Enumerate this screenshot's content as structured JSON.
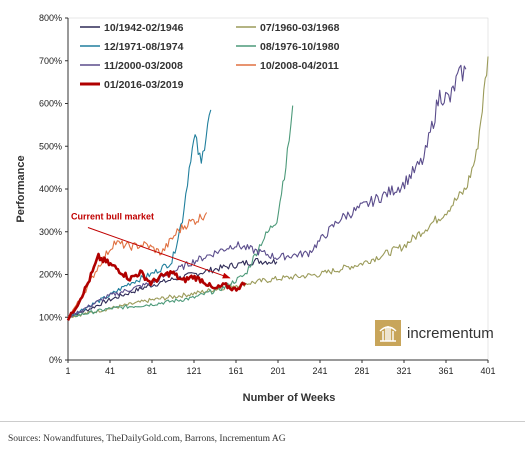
{
  "chart_data": {
    "type": "line",
    "xlabel": "Number of Weeks",
    "ylabel": "Performance",
    "xlim": [
      1,
      401
    ],
    "ylim": [
      0,
      800
    ],
    "x_ticks": [
      1,
      41,
      81,
      121,
      161,
      201,
      241,
      281,
      321,
      361,
      401
    ],
    "y_ticks": [
      0,
      100,
      200,
      300,
      400,
      500,
      600,
      700,
      800
    ],
    "x_tick_labels": [
      "1",
      "41",
      "81",
      "121",
      "161",
      "201",
      "241",
      "281",
      "321",
      "361",
      "401"
    ],
    "y_tick_labels": [
      "0%",
      "100%",
      "200%",
      "300%",
      "400%",
      "500%",
      "600%",
      "700%",
      "800%"
    ],
    "legend_placement": "top-left",
    "series": [
      {
        "name": "10/1942-02/1946",
        "color": "#2e2a56",
        "points": [
          [
            1,
            100
          ],
          [
            20,
            118
          ],
          [
            40,
            140
          ],
          [
            60,
            158
          ],
          [
            80,
            175
          ],
          [
            100,
            188
          ],
          [
            120,
            200
          ],
          [
            140,
            212
          ],
          [
            160,
            222
          ],
          [
            180,
            232
          ],
          [
            200,
            230
          ]
        ]
      },
      {
        "name": "07/1960-03/1968",
        "color": "#9b9b5a",
        "points": [
          [
            1,
            100
          ],
          [
            40,
            120
          ],
          [
            80,
            140
          ],
          [
            120,
            155
          ],
          [
            160,
            175
          ],
          [
            200,
            190
          ],
          [
            240,
            200
          ],
          [
            280,
            225
          ],
          [
            320,
            265
          ],
          [
            340,
            305
          ],
          [
            360,
            345
          ],
          [
            380,
            400
          ],
          [
            390,
            480
          ],
          [
            397,
            620
          ],
          [
            401,
            710
          ]
        ]
      },
      {
        "name": "12/1971-08/1974",
        "color": "#217f9d",
        "points": [
          [
            1,
            100
          ],
          [
            20,
            125
          ],
          [
            40,
            150
          ],
          [
            60,
            180
          ],
          [
            80,
            200
          ],
          [
            100,
            230
          ],
          [
            110,
            330
          ],
          [
            118,
            480
          ],
          [
            122,
            520
          ],
          [
            128,
            455
          ],
          [
            134,
            560
          ],
          [
            137,
            585
          ]
        ]
      },
      {
        "name": "08/1976-10/1980",
        "color": "#4d9a7a",
        "points": [
          [
            1,
            100
          ],
          [
            40,
            120
          ],
          [
            80,
            130
          ],
          [
            120,
            145
          ],
          [
            150,
            170
          ],
          [
            170,
            200
          ],
          [
            185,
            275
          ],
          [
            200,
            330
          ],
          [
            210,
            480
          ],
          [
            215,
            595
          ]
        ]
      },
      {
        "name": "11/2000-03/2008",
        "color": "#5b4d8c",
        "points": [
          [
            1,
            100
          ],
          [
            40,
            150
          ],
          [
            80,
            180
          ],
          [
            120,
            230
          ],
          [
            160,
            270
          ],
          [
            200,
            240
          ],
          [
            230,
            250
          ],
          [
            260,
            330
          ],
          [
            290,
            370
          ],
          [
            320,
            410
          ],
          [
            340,
            470
          ],
          [
            355,
            620
          ],
          [
            365,
            610
          ],
          [
            372,
            660
          ],
          [
            380,
            680
          ]
        ]
      },
      {
        "name": "10/2008-04/2011",
        "color": "#e07040",
        "points": [
          [
            1,
            100
          ],
          [
            15,
            150
          ],
          [
            30,
            220
          ],
          [
            45,
            275
          ],
          [
            60,
            265
          ],
          [
            75,
            270
          ],
          [
            90,
            250
          ],
          [
            105,
            300
          ],
          [
            115,
            320
          ],
          [
            125,
            330
          ],
          [
            133,
            345
          ]
        ]
      },
      {
        "name": "01/2016-03/2019",
        "color": "#b00000",
        "points": [
          [
            1,
            95
          ],
          [
            10,
            130
          ],
          [
            20,
            180
          ],
          [
            30,
            240
          ],
          [
            40,
            225
          ],
          [
            50,
            210
          ],
          [
            60,
            190
          ],
          [
            70,
            205
          ],
          [
            80,
            180
          ],
          [
            90,
            195
          ],
          [
            100,
            205
          ],
          [
            110,
            185
          ],
          [
            120,
            195
          ],
          [
            130,
            185
          ],
          [
            140,
            165
          ],
          [
            150,
            175
          ],
          [
            160,
            165
          ],
          [
            170,
            180
          ]
        ]
      }
    ],
    "annotations": [
      {
        "text": "Current bull market",
        "arrow_from": [
          20,
          310
        ],
        "arrow_to": [
          155,
          192
        ]
      }
    ]
  },
  "logo": {
    "name": "incrementum",
    "icon": "incrementum-logo-icon"
  },
  "footer": {
    "source": "Sources: Nowandfutures, TheDailyGold.com, Barrons, Incrementum AG"
  }
}
